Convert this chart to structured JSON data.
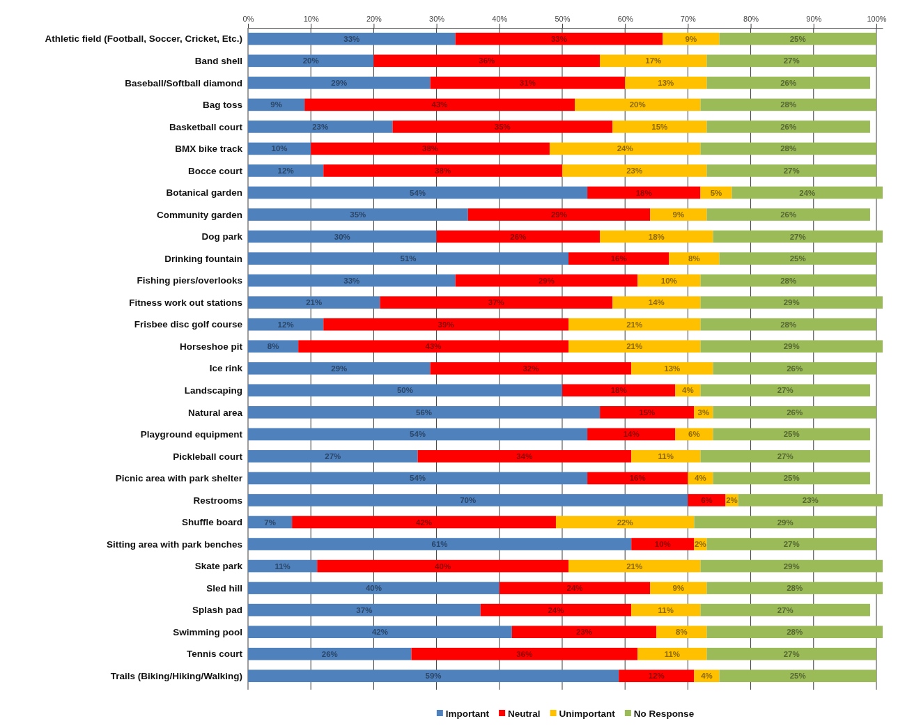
{
  "chart_data": {
    "type": "bar",
    "orientation": "horizontal",
    "stacked": true,
    "categories": [
      "Athletic field (Football, Soccer, Cricket, Etc.)",
      "Band shell",
      "Baseball/Softball diamond",
      "Bag toss",
      "Basketball court",
      "BMX bike track",
      "Bocce court",
      "Botanical garden",
      "Community garden",
      "Dog park",
      "Drinking fountain",
      "Fishing piers/overlooks",
      "Fitness work out stations",
      "Frisbee disc golf course",
      "Horseshoe pit",
      "Ice rink",
      "Landscaping",
      "Natural area",
      "Playground equipment",
      "Pickleball court",
      "Picnic area with park shelter",
      "Restrooms",
      "Shuffle board",
      "Sitting area with park benches",
      "Skate park",
      "Sled hill",
      "Splash pad",
      "Swimming pool",
      "Tennis court",
      "Trails (Biking/Hiking/Walking)"
    ],
    "series": [
      {
        "name": "Important",
        "color": "#4f81bd",
        "values": [
          33,
          20,
          29,
          9,
          23,
          10,
          12,
          54,
          35,
          30,
          51,
          33,
          21,
          12,
          8,
          29,
          50,
          56,
          54,
          27,
          54,
          70,
          7,
          61,
          11,
          40,
          37,
          42,
          26,
          59
        ],
        "value_labels": [
          "33%",
          "20%",
          "29%",
          "9%",
          "23%",
          "10%",
          "12%",
          "54%",
          "35%",
          "30%",
          "51%",
          "33%",
          "21%",
          "12%",
          "8%",
          "29%",
          "50%",
          "56%",
          "54%",
          "27%",
          "54%",
          "70%",
          "7%",
          "61%",
          "11%",
          "40%",
          "37%",
          "42%",
          "26%",
          "59%"
        ]
      },
      {
        "name": "Neutral",
        "color": "#ff0000",
        "values": [
          33,
          36,
          31,
          43,
          35,
          38,
          38,
          18,
          29,
          26,
          16,
          29,
          37,
          39,
          43,
          32,
          18,
          15,
          14,
          34,
          16,
          6,
          42,
          10,
          40,
          24,
          24,
          23,
          36,
          12
        ],
        "value_labels": [
          "33%",
          "36%",
          "31%",
          "43%",
          "35%",
          "38%",
          "38%",
          "18%",
          "29%",
          "26%",
          "16%",
          "29%",
          "37%",
          "39%",
          "43%",
          "32%",
          "18%",
          "15%",
          "14%",
          "34%",
          "16%",
          "6%",
          "42%",
          "10%",
          "40%",
          "24%",
          "24%",
          "23%",
          "36%",
          "12%"
        ]
      },
      {
        "name": "Unimportant",
        "color": "#ffc000",
        "values": [
          9,
          17,
          13,
          20,
          15,
          24,
          23,
          5,
          9,
          18,
          8,
          10,
          14,
          21,
          21,
          13,
          4,
          3,
          6,
          11,
          4,
          2,
          22,
          2,
          21,
          9,
          11,
          8,
          11,
          4
        ],
        "value_labels": [
          "9%",
          "17%",
          "13%",
          "20%",
          "15%",
          "24%",
          "23%",
          "5%",
          "9%",
          "18%",
          "8%",
          "10%",
          "14%",
          "21%",
          "21%",
          "13%",
          "4%",
          "3%",
          "6%",
          "11%",
          "4%",
          "2%",
          "22%",
          "2%",
          "21%",
          "9%",
          "11%",
          "8%",
          "11%",
          "4%"
        ]
      },
      {
        "name": "No Response",
        "color": "#9bbb59",
        "values": [
          25,
          27,
          26,
          28,
          26,
          28,
          27,
          24,
          26,
          27,
          25,
          28,
          29,
          28,
          29,
          26,
          27,
          26,
          25,
          27,
          25,
          23,
          29,
          27,
          29,
          28,
          27,
          28,
          27,
          25
        ],
        "value_labels": [
          "25%",
          "27%",
          "26%",
          "28%",
          "26%",
          "28%",
          "27%",
          "24%",
          "26%",
          "27%",
          "25%",
          "28%",
          "29%",
          "28%",
          "29%",
          "26%",
          "27%",
          "26%",
          "25%",
          "27%",
          "25%",
          "23%",
          "29%",
          "27%",
          "29%",
          "28%",
          "27%",
          "28%",
          "27%",
          "25%"
        ]
      }
    ],
    "xlim": [
      0,
      101
    ],
    "xticks": [
      {
        "value": 0,
        "label": "0%"
      },
      {
        "value": 10,
        "label": "10%"
      },
      {
        "value": 20,
        "label": "20%"
      },
      {
        "value": 30,
        "label": "30%"
      },
      {
        "value": 40,
        "label": "40%"
      },
      {
        "value": 50,
        "label": "50%"
      },
      {
        "value": 60,
        "label": "60%"
      },
      {
        "value": 70,
        "label": "70%"
      },
      {
        "value": 80,
        "label": "80%"
      },
      {
        "value": 90,
        "label": "90%"
      },
      {
        "value": 100,
        "label": "100%"
      }
    ],
    "grid": "x",
    "legend": "bottom"
  }
}
